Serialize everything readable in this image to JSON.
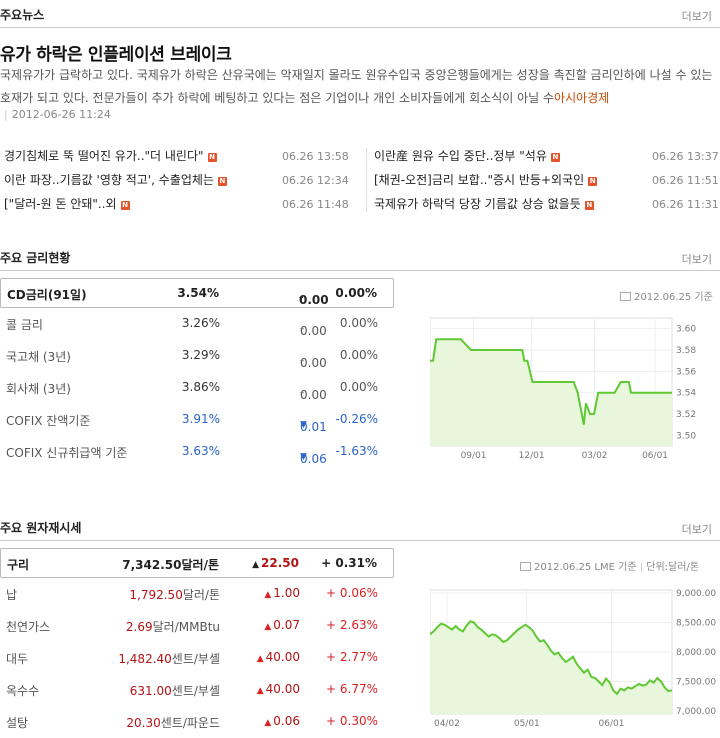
{
  "news_section": {
    "title": "주요뉴스",
    "more": "더보기"
  },
  "headline": {
    "title": "유가 하락은 인플레이션 브레이크",
    "summary": "국제유가가 급락하고 있다. 국제유가 하락은 산유국에는 악재일지 몰라도 원유수입국 중앙은행들에게는 성장을 촉진할 금리인하에 나설 수 있는 호재가 되고 있다. 전문가들이 추가 하락에 베팅하고 있다는 점은 기업이나 개인 소비자들에게 회소식이 아닐 수",
    "source": "아시아경제",
    "date": "2012-06-26 11:24"
  },
  "news_left": [
    {
      "title": "경기침체로 뚝 떨어진 유가..\"더 내린다\"",
      "date": "06.26 13:58"
    },
    {
      "title": "이란 파장..기름값 '영향 적고', 수출업체는",
      "date": "06.26 12:34"
    },
    {
      "title": "[\"달러-원 돈 안돼\"..외",
      "date": "06.26 11:48"
    }
  ],
  "news_right": [
    {
      "title": "이란産 원유 수입 중단..정부 \"석유",
      "date": "06.26 13:37"
    },
    {
      "title": "[채권-오전]금리 보합..\"증시 반등+외국인",
      "date": "06.26 11:51"
    },
    {
      "title": "국제유가 하락덕 당장 기름값 상승 없을듯",
      "date": "06.26 11:31"
    }
  ],
  "new_badge": "N",
  "rates_section": {
    "title": "주요 금리현황",
    "more": "더보기"
  },
  "rates": [
    {
      "name": "CD금리(91일)",
      "value": "3.54%",
      "dir": "flat",
      "change": "0.00",
      "pct": "0.00%"
    },
    {
      "name": "콜 금리",
      "value": "3.26%",
      "dir": "flat",
      "change": "0.00",
      "pct": "0.00%"
    },
    {
      "name": "국고채 (3년)",
      "value": "3.29%",
      "dir": "flat",
      "change": "0.00",
      "pct": "0.00%"
    },
    {
      "name": "회사채 (3년)",
      "value": "3.86%",
      "dir": "flat",
      "change": "0.00",
      "pct": "0.00%"
    },
    {
      "name": "COFIX 잔액기준",
      "value": "3.91%",
      "dir": "down",
      "change": "0.01",
      "pct": "-0.26%"
    },
    {
      "name": "COFIX 신규취급액 기준",
      "value": "3.63%",
      "dir": "down",
      "change": "0.06",
      "pct": "-1.63%"
    }
  ],
  "rates_chart_caption": "2012.06.25 기준",
  "commodities_section": {
    "title": "주요 원자재시세",
    "more": "더보기"
  },
  "commodities": [
    {
      "name": "구리",
      "value": "7,342.50",
      "unit": "달러/톤",
      "dir": "up",
      "change": "22.50",
      "pct": "+ 0.31%"
    },
    {
      "name": "납",
      "value": "1,792.50",
      "unit": "달러/톤",
      "dir": "up",
      "change": "1.00",
      "pct": "+ 0.06%"
    },
    {
      "name": "천연가스",
      "value": "2.69",
      "unit": "달러/MMBtu",
      "dir": "up",
      "change": "0.07",
      "pct": "+ 2.63%"
    },
    {
      "name": "대두",
      "value": "1,482.40",
      "unit": "센트/부셸",
      "dir": "up",
      "change": "40.00",
      "pct": "+ 2.77%"
    },
    {
      "name": "옥수수",
      "value": "631.00",
      "unit": "센트/부셸",
      "dir": "up",
      "change": "40.00",
      "pct": "+ 6.77%"
    },
    {
      "name": "설탕",
      "value": "20.30",
      "unit": "센트/파운드",
      "dir": "up",
      "change": "0.06",
      "pct": "+ 0.30%"
    }
  ],
  "comm_chart_caption": "2012.06.25 LME 기준",
  "comm_chart_unit": "단위:달러/톤",
  "colors": {
    "up": "#d92323",
    "down": "#2a62c9",
    "chart_line": "#5fc832",
    "chart_fill": "#e8f7dc",
    "badge": "#e5532b"
  },
  "chart_data": [
    {
      "type": "area",
      "series_for": "CD금리(91일)",
      "x_ticks": [
        "09/01",
        "12/01",
        "03/02",
        "06/01"
      ],
      "y_ticks": [
        "3.60",
        "3.58",
        "3.56",
        "3.54",
        "3.52",
        "3.50"
      ],
      "ylim": [
        3.49,
        3.61
      ],
      "x": [
        0,
        3,
        6,
        10,
        20,
        30,
        40,
        50,
        60,
        70,
        80,
        90,
        92,
        95,
        100,
        110,
        120,
        130,
        140,
        144,
        146,
        148,
        150,
        152,
        156,
        160,
        164,
        170,
        180,
        186,
        190,
        194,
        196,
        198,
        200,
        230,
        236
      ],
      "values": [
        3.57,
        3.57,
        3.59,
        3.59,
        3.59,
        3.59,
        3.58,
        3.58,
        3.58,
        3.58,
        3.58,
        3.58,
        3.57,
        3.57,
        3.55,
        3.55,
        3.55,
        3.55,
        3.55,
        3.54,
        3.53,
        3.52,
        3.51,
        3.53,
        3.52,
        3.52,
        3.54,
        3.54,
        3.54,
        3.55,
        3.55,
        3.55,
        3.54,
        3.54,
        3.54,
        3.54,
        3.54
      ]
    },
    {
      "type": "area",
      "series_for": "구리",
      "x_ticks": [
        "04/02",
        "05/01",
        "06/01"
      ],
      "y_ticks": [
        "9,000.00",
        "8,500.00",
        "8,000.00",
        "7,500.00",
        "7,000.00"
      ],
      "ylim": [
        6950,
        9050
      ],
      "values": [
        8300,
        8350,
        8420,
        8480,
        8460,
        8420,
        8380,
        8440,
        8380,
        8350,
        8450,
        8520,
        8500,
        8420,
        8380,
        8320,
        8260,
        8300,
        8280,
        8230,
        8170,
        8200,
        8260,
        8320,
        8380,
        8420,
        8460,
        8420,
        8360,
        8260,
        8180,
        8200,
        8120,
        8020,
        7960,
        7990,
        7900,
        7830,
        7870,
        7920,
        7800,
        7720,
        7650,
        7700,
        7580,
        7560,
        7500,
        7440,
        7550,
        7480,
        7350,
        7290,
        7380,
        7350,
        7400,
        7380,
        7420,
        7460,
        7430,
        7450,
        7520,
        7480,
        7560,
        7500,
        7400,
        7340,
        7350
      ]
    }
  ]
}
